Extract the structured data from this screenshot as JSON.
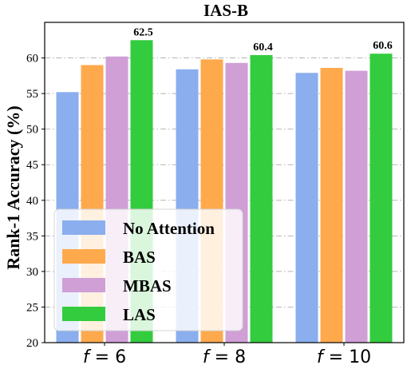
{
  "chart_data": {
    "type": "bar",
    "title": "IAS-B",
    "ylabel": "Rank-1 Accuracy (%)",
    "xlabel": "",
    "categories": [
      "f = 6",
      "f = 8",
      "f = 10"
    ],
    "ylim": [
      20,
      65
    ],
    "yticks": [
      20,
      25,
      30,
      35,
      40,
      45,
      50,
      55,
      60
    ],
    "grid": "horizontal dash-dot",
    "legend_position": "bottom-left",
    "series": [
      {
        "name": "No Attention",
        "values": [
          55.2,
          58.4,
          57.9
        ],
        "color": "#8aaeee"
      },
      {
        "name": "BAS",
        "values": [
          59.0,
          59.8,
          58.6
        ],
        "color": "#ffa94d"
      },
      {
        "name": "MBAS",
        "values": [
          60.2,
          59.3,
          58.2
        ],
        "color": "#cf9fd6"
      },
      {
        "name": "LAS",
        "values": [
          62.5,
          60.4,
          60.6
        ],
        "color": "#33cc3f"
      }
    ],
    "data_labels": [
      {
        "category_index": 0,
        "series_index": 3,
        "text": "62.5"
      },
      {
        "category_index": 1,
        "series_index": 3,
        "text": "60.4"
      },
      {
        "category_index": 2,
        "series_index": 3,
        "text": "60.6"
      }
    ]
  }
}
